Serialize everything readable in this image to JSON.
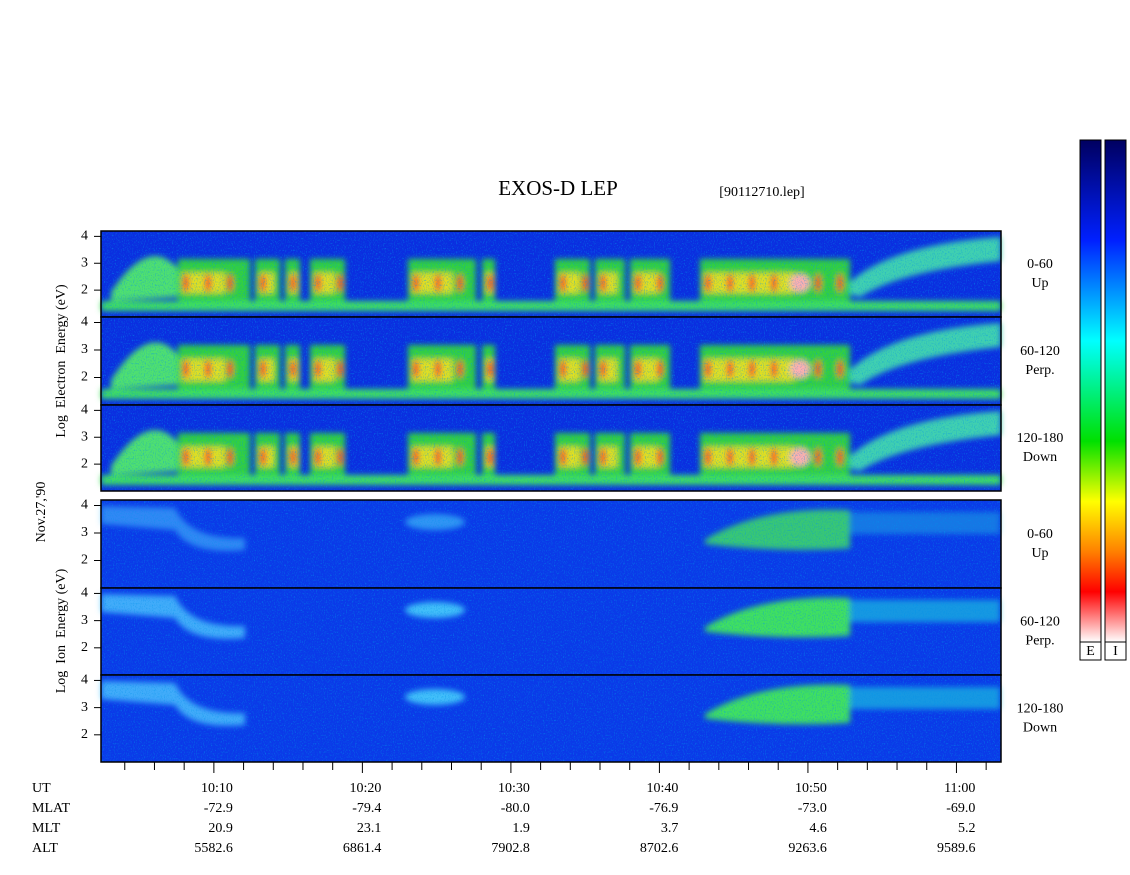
{
  "chart_data": {
    "type": "spectrogram",
    "title": "EXOS-D LEP",
    "file": "[90112710.lep]",
    "date": "Nov.27,'90",
    "xlim": [
      2.4,
      63.0
    ],
    "xticks": [
      {
        "value": 10,
        "label": "10:10"
      },
      {
        "value": 20,
        "label": "10:20"
      },
      {
        "value": 30,
        "label": "10:30"
      },
      {
        "value": 40,
        "label": "10:40"
      },
      {
        "value": 50,
        "label": "10:50"
      },
      {
        "value": 60,
        "label": "11:00"
      }
    ],
    "xminorticks": [
      4,
      6,
      8,
      12,
      14,
      16,
      18,
      22,
      24,
      26,
      28,
      32,
      34,
      36,
      38,
      42,
      44,
      46,
      48,
      52,
      54,
      56,
      58,
      62
    ],
    "ylim": [
      1,
      4.2
    ],
    "yticks": [
      2,
      3,
      4
    ],
    "groups": [
      {
        "ylabel": "Log  Electron  Energy (eV)",
        "kind": "electron",
        "panels": [
          {
            "name": "0-60",
            "sub": "Up"
          },
          {
            "name": "60-120",
            "sub": "Perp."
          },
          {
            "name": "120-180",
            "sub": "Down"
          }
        ]
      },
      {
        "ylabel": "Log  Ion  Energy (eV)",
        "kind": "ion",
        "panels": [
          {
            "name": "0-60",
            "sub": "Up"
          },
          {
            "name": "60-120",
            "sub": "Perp."
          },
          {
            "name": "120-180",
            "sub": "Down"
          }
        ]
      }
    ],
    "ephemeris": {
      "x_label": "UT",
      "rows": [
        {
          "label": "MLAT",
          "values": [
            "-72.9",
            "-79.4",
            "-80.0",
            "-76.9",
            "-73.0",
            "-69.0"
          ]
        },
        {
          "label": "MLT",
          "values": [
            "20.9",
            "23.1",
            "1.9",
            "3.7",
            "4.6",
            "5.2"
          ]
        },
        {
          "label": "ALT",
          "values": [
            "5582.6",
            "6861.4",
            "7902.8",
            "8702.6",
            "9263.6",
            "9589.6"
          ]
        }
      ]
    },
    "colorbar_labels": [
      "E",
      "I"
    ]
  }
}
